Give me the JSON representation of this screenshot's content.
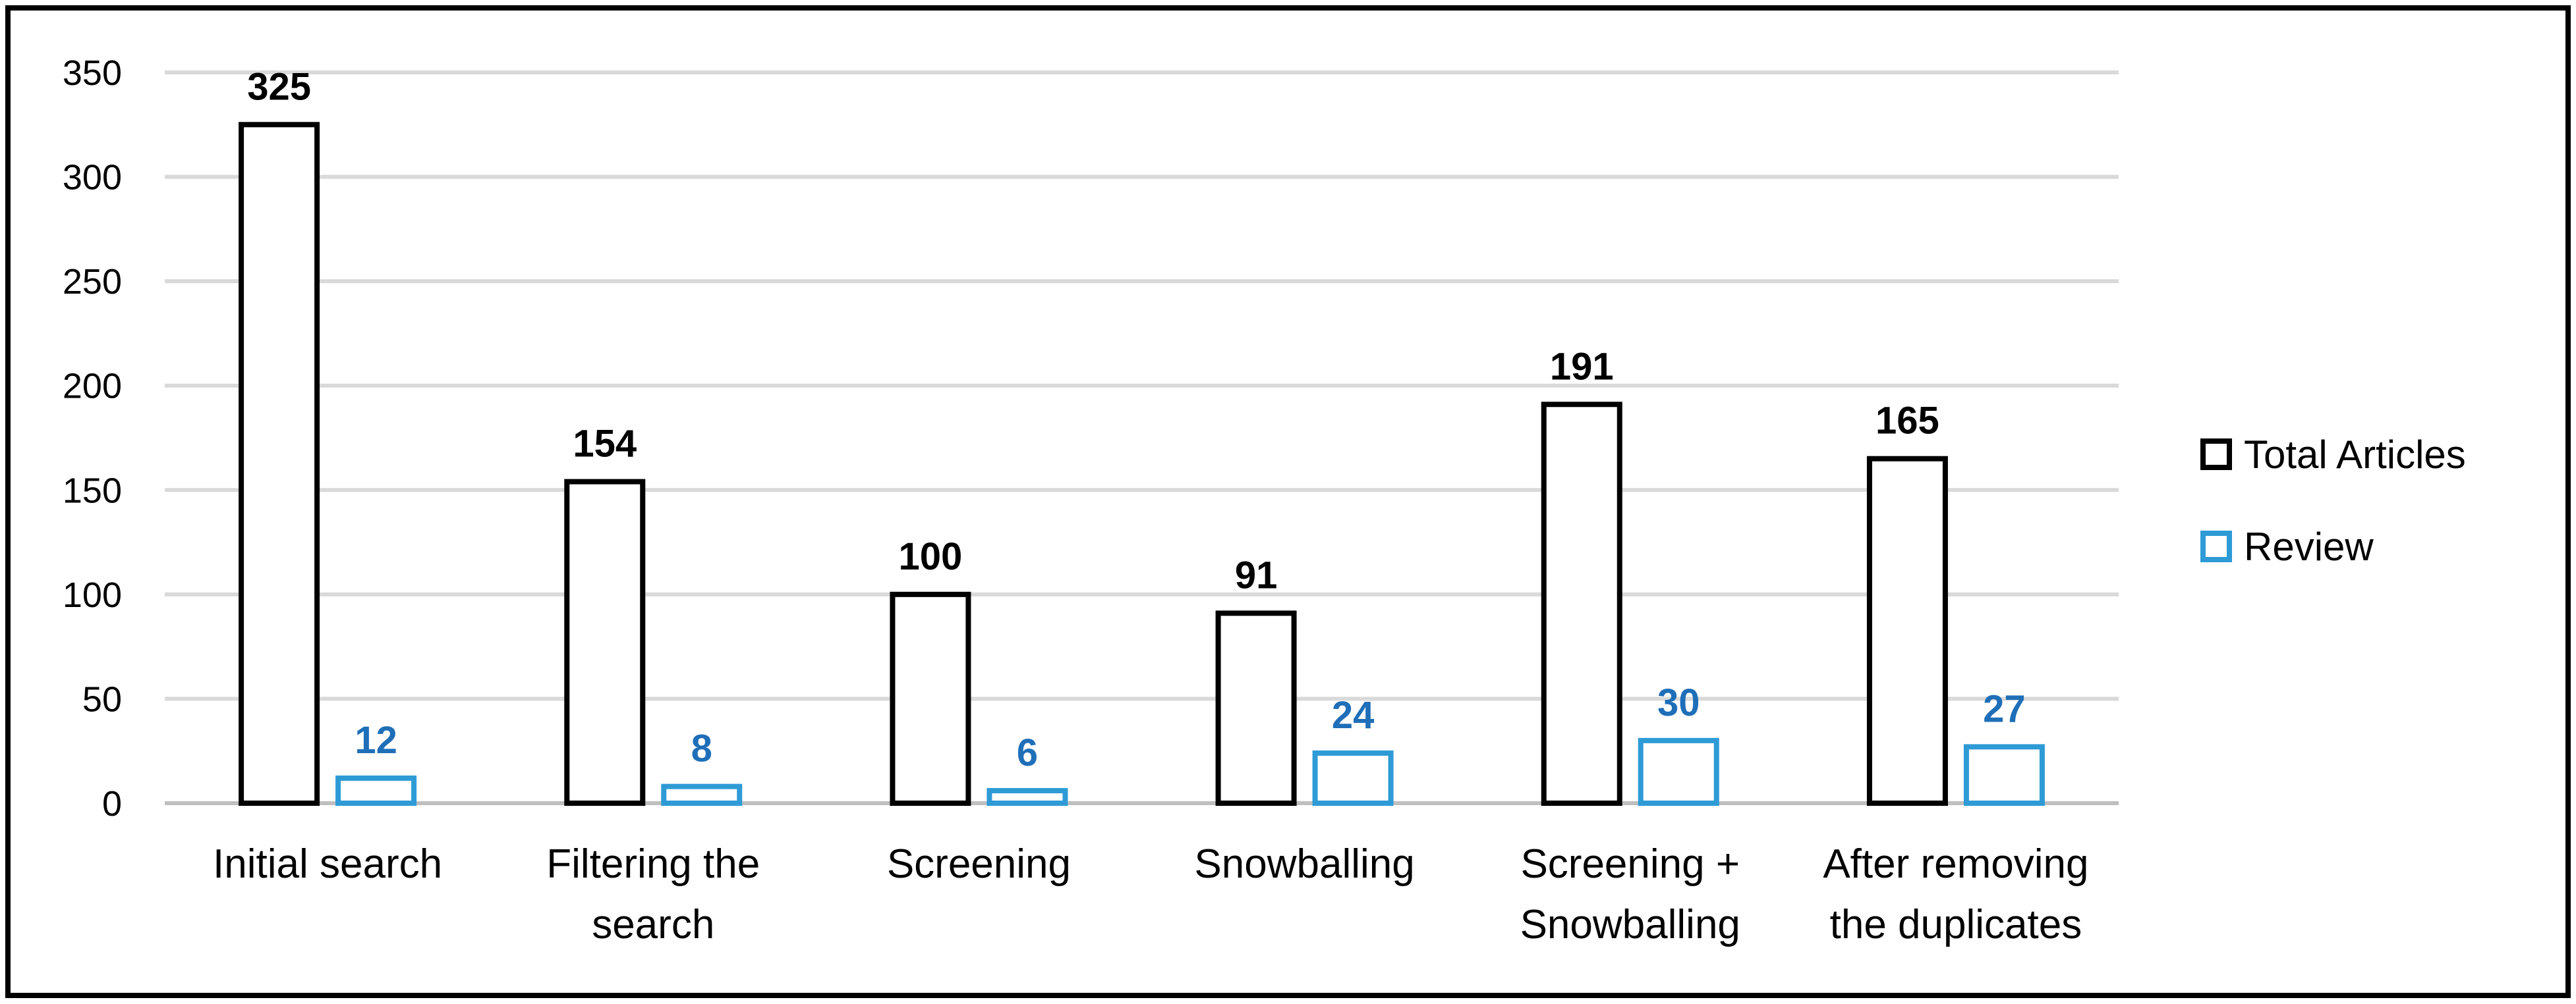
{
  "chart_data": {
    "type": "bar",
    "title": "",
    "xlabel": "",
    "ylabel": "",
    "ylim": [
      0,
      350
    ],
    "yticks": [
      0,
      50,
      100,
      150,
      200,
      250,
      300,
      350
    ],
    "grid": true,
    "legend_position": "right",
    "categories": [
      [
        "Initial search"
      ],
      [
        "Filtering the",
        "search"
      ],
      [
        "Screening"
      ],
      [
        "Snowballing"
      ],
      [
        "Screening +",
        "Snowballing"
      ],
      [
        "After removing",
        "the duplicates"
      ]
    ],
    "series": [
      {
        "name": "Total Articles",
        "color": "#000000",
        "label_color": "#000000",
        "values": [
          325,
          154,
          100,
          91,
          191,
          165
        ]
      },
      {
        "name": "Review",
        "color": "#2E9BD6",
        "label_color": "#1F6FB8",
        "values": [
          12,
          8,
          6,
          24,
          30,
          27
        ]
      }
    ],
    "colors": {
      "gridline": "#D9D9D9",
      "axis": "#BFBFBF",
      "frame": "#000000"
    }
  }
}
